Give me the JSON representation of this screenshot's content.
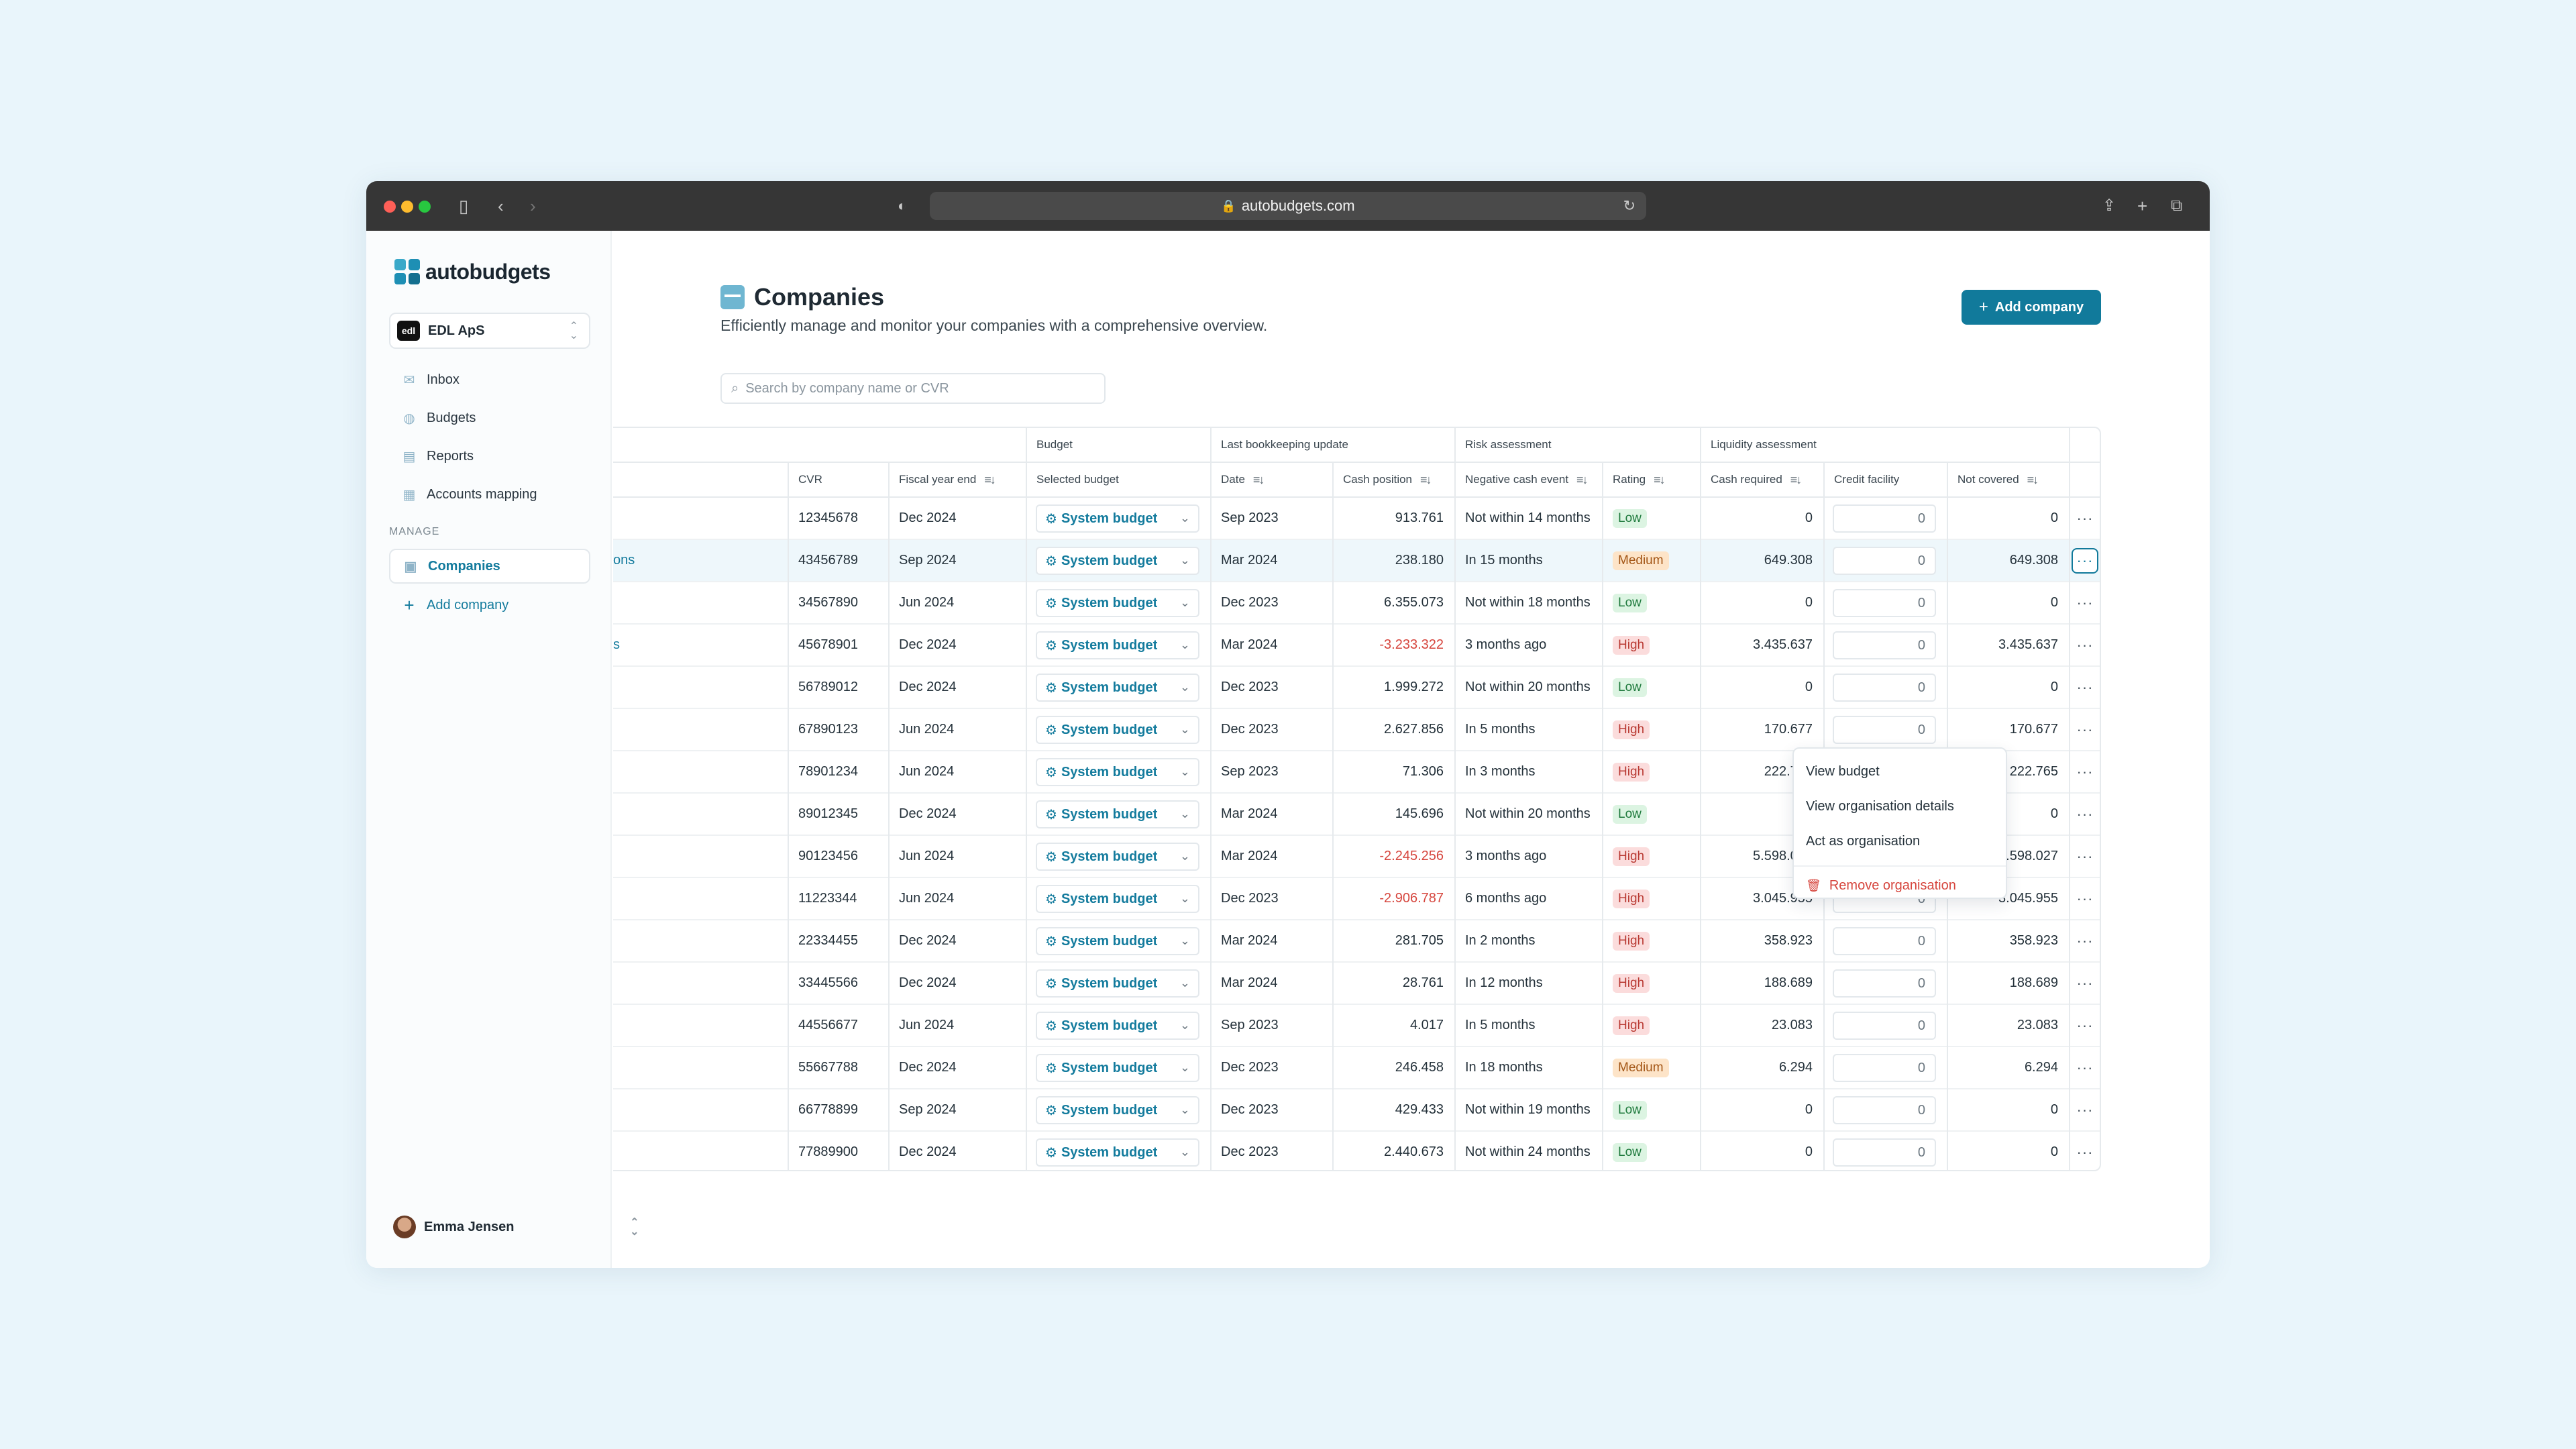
{
  "browser": {
    "url": "autobudgets.com"
  },
  "app": {
    "name": "autobudgets"
  },
  "sidebar": {
    "org_badge": "edl",
    "org_name": "EDL ApS",
    "items": [
      {
        "label": "Inbox",
        "icon": "inbox-icon"
      },
      {
        "label": "Budgets",
        "icon": "budgets-icon"
      },
      {
        "label": "Reports",
        "icon": "reports-icon"
      },
      {
        "label": "Accounts mapping",
        "icon": "accounts-mapping-icon"
      }
    ],
    "manage_label": "MANAGE",
    "manage_items": [
      {
        "label": "Companies",
        "icon": "companies-icon"
      },
      {
        "label": "Add company",
        "icon": "plus-icon"
      }
    ],
    "user_name": "Emma Jensen"
  },
  "page": {
    "title": "Companies",
    "subtitle": "Efficiently manage and monitor your companies with a comprehensive overview.",
    "add_button": "Add company",
    "search_placeholder": "Search by company name or CVR"
  },
  "table": {
    "groups": {
      "budget": "Budget",
      "bookkeeping": "Last bookkeeping update",
      "risk": "Risk assessment",
      "liquidity": "Liquidity assessment"
    },
    "headers": {
      "cvr": "CVR",
      "fiscal": "Fiscal year end",
      "selected_budget": "Selected budget",
      "date": "Date",
      "cash_position": "Cash position",
      "negative_event": "Negative cash event",
      "rating": "Rating",
      "cash_required": "Cash required",
      "credit_facility": "Credit facility",
      "not_covered": "Not covered"
    },
    "rows": [
      {
        "name": "",
        "cvr": "12345678",
        "fiscal": "Dec 2024",
        "budget": "System budget",
        "date": "Sep 2023",
        "cash": "913.761",
        "neg": false,
        "event": "Not within 14 months",
        "rating": "Low",
        "required": "0",
        "credit": "0",
        "not_covered": "0"
      },
      {
        "name": "ons",
        "cvr": "43456789",
        "fiscal": "Sep 2024",
        "budget": "System budget",
        "date": "Mar 2024",
        "cash": "238.180",
        "neg": false,
        "event": "In 15 months",
        "rating": "Medium",
        "required": "649.308",
        "credit": "0",
        "not_covered": "649.308"
      },
      {
        "name": "",
        "cvr": "34567890",
        "fiscal": "Jun 2024",
        "budget": "System budget",
        "date": "Dec 2023",
        "cash": "6.355.073",
        "neg": false,
        "event": "Not within 18 months",
        "rating": "Low",
        "required": "0",
        "credit": "0",
        "not_covered": "0"
      },
      {
        "name": "s",
        "cvr": "45678901",
        "fiscal": "Dec 2024",
        "budget": "System budget",
        "date": "Mar 2024",
        "cash": "-3.233.322",
        "neg": true,
        "event": "3 months ago",
        "rating": "High",
        "required": "3.435.637",
        "credit": "0",
        "not_covered": "3.435.637"
      },
      {
        "name": "",
        "cvr": "56789012",
        "fiscal": "Dec 2024",
        "budget": "System budget",
        "date": "Dec 2023",
        "cash": "1.999.272",
        "neg": false,
        "event": "Not within 20 months",
        "rating": "Low",
        "required": "0",
        "credit": "0",
        "not_covered": "0"
      },
      {
        "name": "",
        "cvr": "67890123",
        "fiscal": "Jun 2024",
        "budget": "System budget",
        "date": "Dec 2023",
        "cash": "2.627.856",
        "neg": false,
        "event": "In 5 months",
        "rating": "High",
        "required": "170.677",
        "credit": "0",
        "not_covered": "170.677"
      },
      {
        "name": "",
        "cvr": "78901234",
        "fiscal": "Jun 2024",
        "budget": "System budget",
        "date": "Sep 2023",
        "cash": "71.306",
        "neg": false,
        "event": "In 3 months",
        "rating": "High",
        "required": "222.765",
        "credit": "0",
        "not_covered": "222.765"
      },
      {
        "name": "",
        "cvr": "89012345",
        "fiscal": "Dec 2024",
        "budget": "System budget",
        "date": "Mar 2024",
        "cash": "145.696",
        "neg": false,
        "event": "Not within 20 months",
        "rating": "Low",
        "required": "0",
        "credit": "0",
        "not_covered": "0"
      },
      {
        "name": "",
        "cvr": "90123456",
        "fiscal": "Jun 2024",
        "budget": "System budget",
        "date": "Mar 2024",
        "cash": "-2.245.256",
        "neg": true,
        "event": "3 months ago",
        "rating": "High",
        "required": "5.598.027",
        "credit": "0",
        "not_covered": "5.598.027"
      },
      {
        "name": "",
        "cvr": "11223344",
        "fiscal": "Jun 2024",
        "budget": "System budget",
        "date": "Dec 2023",
        "cash": "-2.906.787",
        "neg": true,
        "event": "6 months ago",
        "rating": "High",
        "required": "3.045.955",
        "credit": "0",
        "not_covered": "3.045.955"
      },
      {
        "name": "",
        "cvr": "22334455",
        "fiscal": "Dec 2024",
        "budget": "System budget",
        "date": "Mar 2024",
        "cash": "281.705",
        "neg": false,
        "event": "In 2 months",
        "rating": "High",
        "required": "358.923",
        "credit": "0",
        "not_covered": "358.923"
      },
      {
        "name": "",
        "cvr": "33445566",
        "fiscal": "Dec 2024",
        "budget": "System budget",
        "date": "Mar 2024",
        "cash": "28.761",
        "neg": false,
        "event": "In 12 months",
        "rating": "High",
        "required": "188.689",
        "credit": "0",
        "not_covered": "188.689"
      },
      {
        "name": "",
        "cvr": "44556677",
        "fiscal": "Jun 2024",
        "budget": "System budget",
        "date": "Sep 2023",
        "cash": "4.017",
        "neg": false,
        "event": "In 5 months",
        "rating": "High",
        "required": "23.083",
        "credit": "0",
        "not_covered": "23.083"
      },
      {
        "name": "",
        "cvr": "55667788",
        "fiscal": "Dec 2024",
        "budget": "System budget",
        "date": "Dec 2023",
        "cash": "246.458",
        "neg": false,
        "event": "In 18 months",
        "rating": "Medium",
        "required": "6.294",
        "credit": "0",
        "not_covered": "6.294"
      },
      {
        "name": "",
        "cvr": "66778899",
        "fiscal": "Sep 2024",
        "budget": "System budget",
        "date": "Dec 2023",
        "cash": "429.433",
        "neg": false,
        "event": "Not within 19 months",
        "rating": "Low",
        "required": "0",
        "credit": "0",
        "not_covered": "0"
      },
      {
        "name": "",
        "cvr": "77889900",
        "fiscal": "Dec 2024",
        "budget": "System budget",
        "date": "Dec 2023",
        "cash": "2.440.673",
        "neg": false,
        "event": "Not within 24 months",
        "rating": "Low",
        "required": "0",
        "credit": "0",
        "not_covered": "0"
      }
    ]
  },
  "context_menu": {
    "items": [
      "View budget",
      "View organisation details",
      "Act as organisation"
    ],
    "danger": "Remove organisation"
  },
  "colors": {
    "accent": "#117a9b",
    "negative": "#d6453d"
  }
}
